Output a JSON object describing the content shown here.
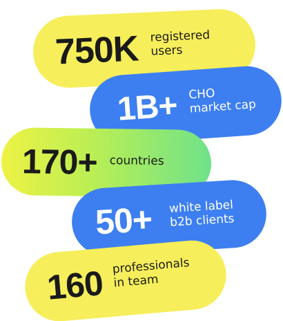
{
  "stats": [
    {
      "value": "750K",
      "caption_line1": "registered",
      "caption_line2": "users"
    },
    {
      "value": "1B+",
      "caption_line1": "CHO",
      "caption_line2": "market cap"
    },
    {
      "value": "170+",
      "caption_line1": "countries",
      "caption_line2": ""
    },
    {
      "value": "50+",
      "caption_line1": "white label",
      "caption_line2": "b2b clients"
    },
    {
      "value": "160",
      "caption_line1": "professionals",
      "caption_line2": "in team"
    }
  ],
  "colors": {
    "yellow": "#f6ee5b",
    "blue": "#3d7ff0",
    "gradient_start": "#eef244",
    "gradient_end": "#6fe28a",
    "dark_text": "#1a1a1a",
    "light_text": "#ffffff"
  }
}
